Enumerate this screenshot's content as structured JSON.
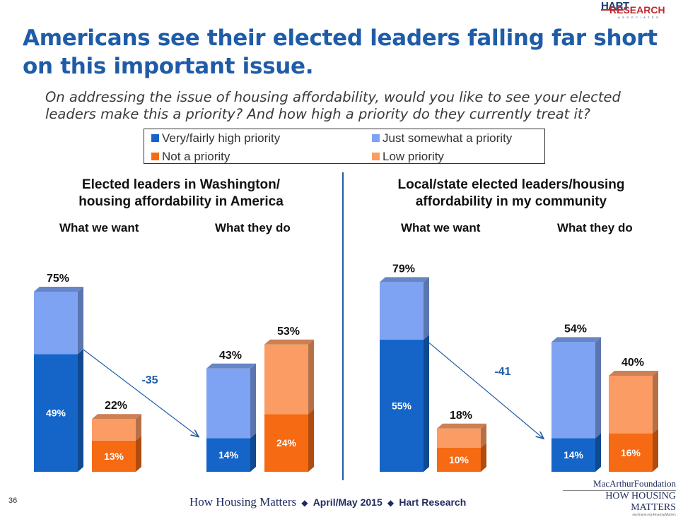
{
  "logo": {
    "line1": "HART",
    "line2": "RESEARCH",
    "line3": "ASSOCIATES"
  },
  "title": "Americans see their elected leaders falling far short on this important issue.",
  "subtitle": "On addressing the issue of housing affordability, would you like to see your elected leaders make this a priority?  And how high a priority do they currently treat it?",
  "legend": [
    {
      "label": "Very/fairly high priority",
      "color": "#1565c8"
    },
    {
      "label": "Just somewhat a priority",
      "color": "#7ea3f3"
    },
    {
      "label": "Not a priority",
      "color": "#f56a12"
    },
    {
      "label": "Low priority",
      "color": "#fb9c64"
    }
  ],
  "colors": {
    "high": "#1565c8",
    "somewhat": "#7ea3f3",
    "not": "#f56a12",
    "low": "#fb9c64",
    "accent": "#1f5ca8",
    "text": "#111111"
  },
  "chart_data": [
    {
      "type": "bar",
      "title": "Elected leaders in Washington/ housing affordability in America",
      "groups": [
        "What we want",
        "What they do"
      ],
      "bars": [
        {
          "group": "What we want",
          "stack": "priority",
          "segments": [
            {
              "series": "Very/fairly high priority",
              "value": 49
            },
            {
              "series": "Just somewhat a priority",
              "value": 26
            }
          ],
          "total_label": "75%"
        },
        {
          "group": "What we want",
          "stack": "not",
          "segments": [
            {
              "series": "Not a priority",
              "value": 13
            },
            {
              "series": "Low priority",
              "value": 9
            }
          ],
          "total_label": "22%"
        },
        {
          "group": "What they do",
          "stack": "priority",
          "segments": [
            {
              "series": "Very/fairly high priority",
              "value": 14
            },
            {
              "series": "Just somewhat a priority",
              "value": 29
            }
          ],
          "total_label": "43%"
        },
        {
          "group": "What they do",
          "stack": "not",
          "segments": [
            {
              "series": "Not a priority",
              "value": 24
            },
            {
              "series": "Low priority",
              "value": 29
            }
          ],
          "total_label": "53%"
        }
      ],
      "annotation": "-35"
    },
    {
      "type": "bar",
      "title": "Local/state elected leaders/housing affordability in my community",
      "groups": [
        "What we want",
        "What they do"
      ],
      "bars": [
        {
          "group": "What we want",
          "stack": "priority",
          "segments": [
            {
              "series": "Very/fairly high priority",
              "value": 55
            },
            {
              "series": "Just somewhat a priority",
              "value": 24
            }
          ],
          "total_label": "79%"
        },
        {
          "group": "What we want",
          "stack": "not",
          "segments": [
            {
              "series": "Not a priority",
              "value": 10
            },
            {
              "series": "Low priority",
              "value": 8
            }
          ],
          "total_label": "18%"
        },
        {
          "group": "What they do",
          "stack": "priority",
          "segments": [
            {
              "series": "Very/fairly high priority",
              "value": 14
            },
            {
              "series": "Just somewhat a priority",
              "value": 40
            }
          ],
          "total_label": "54%"
        },
        {
          "group": "What they do",
          "stack": "not",
          "segments": [
            {
              "series": "Not a priority",
              "value": 16
            },
            {
              "series": "Low priority",
              "value": 24
            }
          ],
          "total_label": "40%"
        }
      ],
      "annotation": "-41"
    }
  ],
  "panels": [
    {
      "title_line1": "Elected leaders in Washington/",
      "title_line2": "housing affordability in America",
      "col1": "What we want",
      "col2": "What they do"
    },
    {
      "title_line1": "Local/state elected leaders/housing",
      "title_line2": "affordability in my community",
      "col1": "What we want",
      "col2": "What they do"
    }
  ],
  "footer": {
    "page_number": "36",
    "brand": "How Housing Matters",
    "sep": "◆",
    "date": "April/May 2015",
    "org": "Hart Research",
    "foundation": "MacArthurFoundation",
    "foundation_sub": "HOW HOUSING MATTERS",
    "foundation_url": "macfound.org/HousingMatters"
  }
}
